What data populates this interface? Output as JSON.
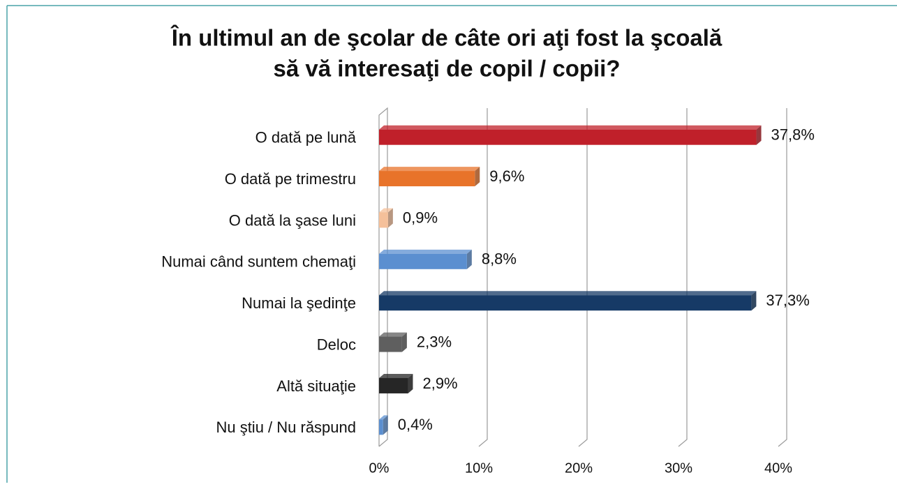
{
  "chart_data": {
    "type": "bar",
    "orientation": "horizontal",
    "title": [
      "În ultimul an de şcolar de câte ori aţi fost la şcoală",
      "să vă interesaţi de copil / copii?"
    ],
    "categories": [
      "O dată pe lună",
      "O dată pe trimestru",
      "O dată la şase luni",
      "Numai când suntem chemaţi",
      "Numai la şedinţe",
      "Deloc",
      "Altă situaţie",
      "Nu ştiu / Nu răspund"
    ],
    "values": [
      37.8,
      9.6,
      0.9,
      8.8,
      37.3,
      2.3,
      2.9,
      0.4
    ],
    "value_labels": [
      "37,8%",
      "9,6%",
      "0,9%",
      "8,8%",
      "37,3%",
      "2,3%",
      "2,9%",
      "0,4%"
    ],
    "colors": [
      "#c0202a",
      "#e8732a",
      "#f5c09a",
      "#5b8fd0",
      "#163a66",
      "#5f5f5f",
      "#262626",
      "#5b8fd0"
    ],
    "xlim": [
      0,
      40
    ],
    "xticks": [
      {
        "value": 0,
        "label": "0%"
      },
      {
        "value": 10,
        "label": "10%"
      },
      {
        "value": 20,
        "label": "20%"
      },
      {
        "value": 30,
        "label": "30%"
      },
      {
        "value": 40,
        "label": "40%"
      }
    ],
    "grid": true
  }
}
